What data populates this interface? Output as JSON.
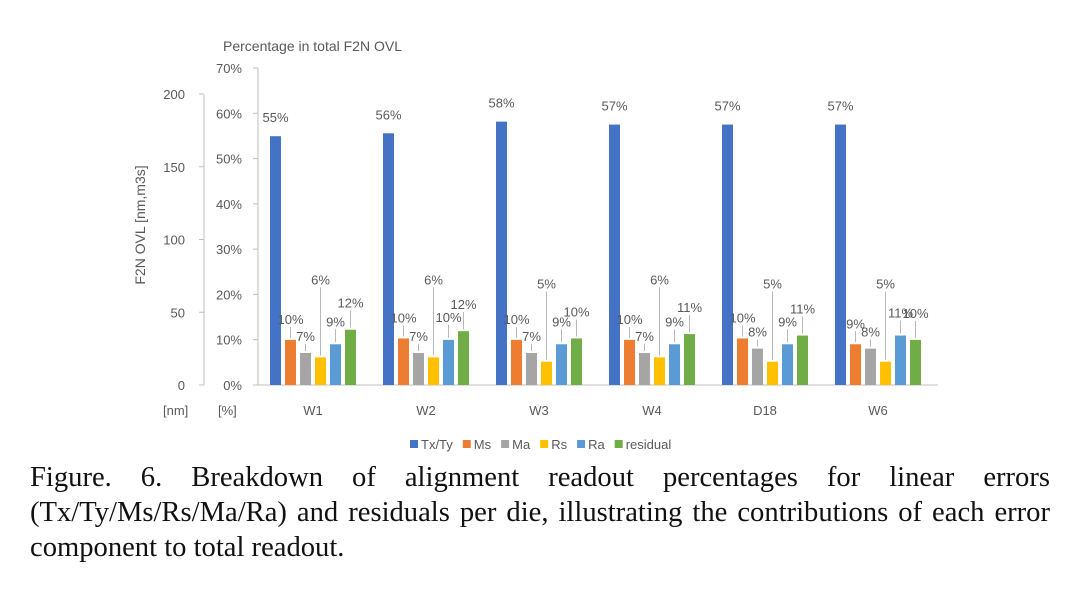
{
  "chart_data": {
    "type": "bar",
    "title": "Percentage in total F2N OVL",
    "ylabel": "F2N OVL [nm,m3s]",
    "left_axis_unit": "[nm]",
    "right_axis_unit": "[%]",
    "left_axis_ticks": [
      "0",
      "50",
      "100",
      "150",
      "200"
    ],
    "right_axis_ticks": [
      "0%",
      "10%",
      "20%",
      "30%",
      "40%",
      "50%",
      "60%",
      "70%"
    ],
    "ylim": [
      0,
      200
    ],
    "categories": [
      "W1",
      "W2",
      "W3",
      "W4",
      "D18",
      "W6"
    ],
    "series": [
      {
        "name": "Tx/Ty",
        "color": "#4472C4",
        "values": [
          171,
          173,
          181,
          179,
          179,
          179
        ],
        "labels": [
          "55%",
          "56%",
          "58%",
          "57%",
          "57%",
          "57%"
        ]
      },
      {
        "name": "Ms",
        "color": "#ED7D31",
        "values": [
          31,
          32,
          31,
          31,
          32,
          28
        ],
        "labels": [
          "10%",
          "10%",
          "10%",
          "10%",
          "10%",
          "9%"
        ]
      },
      {
        "name": "Ma",
        "color": "#A5A5A5",
        "values": [
          22,
          22,
          22,
          22,
          25,
          25
        ],
        "labels": [
          "7%",
          "7%",
          "7%",
          "7%",
          "8%",
          "8%"
        ]
      },
      {
        "name": "Rs",
        "color": "#FFC000",
        "values": [
          19,
          19,
          16,
          19,
          16,
          16
        ],
        "labels": [
          "6%",
          "6%",
          "5%",
          "6%",
          "5%",
          "5%"
        ]
      },
      {
        "name": "Ra",
        "color": "#5B9BD5",
        "values": [
          28,
          31,
          28,
          28,
          28,
          34
        ],
        "labels": [
          "9%",
          "10%",
          "9%",
          "9%",
          "9%",
          "11%"
        ]
      },
      {
        "name": "residual",
        "color": "#70AD47",
        "values": [
          38,
          37,
          32,
          35,
          34,
          31
        ],
        "labels": [
          "12%",
          "12%",
          "10%",
          "11%",
          "11%",
          "10%"
        ]
      }
    ],
    "legend_position": "bottom",
    "grid": false
  },
  "caption": "Figure. 6. Breakdown of alignment readout percentages for linear errors (Tx/Ty/Ms/Rs/Ma/Ra) and residuals per die, illustrating the contributions of each error component to total readout."
}
